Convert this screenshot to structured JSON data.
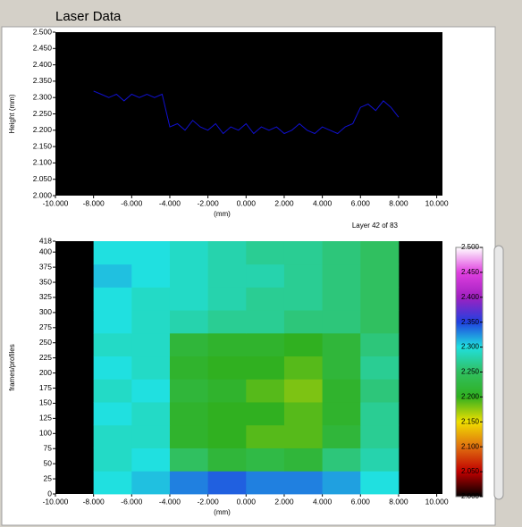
{
  "chart_data": [
    {
      "type": "line",
      "title": "Laser Data",
      "x_label": "(mm)",
      "y_label": "Height (mm)",
      "annotation": "Layer 42 of 83",
      "x": [
        -8,
        -7.6,
        -7.2,
        -6.8,
        -6.4,
        -6,
        -5.6,
        -5.2,
        -4.8,
        -4.4,
        -4,
        -3.6,
        -3.2,
        -2.8,
        -2.4,
        -2,
        -1.6,
        -1.2,
        -0.8,
        -0.4,
        0,
        0.4,
        0.8,
        1.2,
        1.6,
        2,
        2.4,
        2.8,
        3.2,
        3.6,
        4,
        4.4,
        4.8,
        5.2,
        5.6,
        6,
        6.4,
        6.8,
        7.2,
        7.6,
        8
      ],
      "series": [
        {
          "color": "#1010d0",
          "values": [
            2.32,
            2.31,
            2.3,
            2.31,
            2.29,
            2.31,
            2.3,
            2.31,
            2.3,
            2.31,
            2.21,
            2.22,
            2.2,
            2.23,
            2.21,
            2.2,
            2.22,
            2.19,
            2.21,
            2.2,
            2.22,
            2.19,
            2.21,
            2.2,
            2.21,
            2.19,
            2.2,
            2.22,
            2.2,
            2.19,
            2.21,
            2.2,
            2.19,
            2.21,
            2.22,
            2.27,
            2.28,
            2.26,
            2.29,
            2.27,
            2.24
          ]
        }
      ],
      "xlim": [
        -10,
        10.3
      ],
      "ylim": [
        2.0,
        2.5
      ],
      "xticks": [
        {
          "value": -10,
          "label": "-10.000"
        },
        {
          "value": -8,
          "label": "-8.000"
        },
        {
          "value": -6,
          "label": "-6.000"
        },
        {
          "value": -4,
          "label": "-4.000"
        },
        {
          "value": -2,
          "label": "-2.000"
        },
        {
          "value": 0,
          "label": "0.000"
        },
        {
          "value": 2,
          "label": "2.000"
        },
        {
          "value": 4,
          "label": "4.000"
        },
        {
          "value": 6,
          "label": "6.000"
        },
        {
          "value": 8,
          "label": "8.000"
        },
        {
          "value": 10,
          "label": "10.000"
        }
      ],
      "yticks": [
        {
          "value": 2.0,
          "label": "2.000"
        },
        {
          "value": 2.05,
          "label": "2.050"
        },
        {
          "value": 2.1,
          "label": "2.100"
        },
        {
          "value": 2.15,
          "label": "2.150"
        },
        {
          "value": 2.2,
          "label": "2.200"
        },
        {
          "value": 2.25,
          "label": "2.250"
        },
        {
          "value": 2.3,
          "label": "2.300"
        },
        {
          "value": 2.35,
          "label": "2.350"
        },
        {
          "value": 2.4,
          "label": "2.400"
        },
        {
          "value": 2.45,
          "label": "2.450"
        },
        {
          "value": 2.5,
          "label": "2.500"
        }
      ]
    },
    {
      "type": "heatmap",
      "x_label": "(mm)",
      "y_label": "frames/profiles",
      "x_edges": [
        -8,
        -6,
        -4,
        -2,
        0,
        2,
        4,
        6,
        8
      ],
      "y_edges": [
        0,
        38,
        76,
        114,
        152,
        190,
        228,
        266,
        304,
        342,
        380,
        418
      ],
      "z": [
        [
          2.3,
          2.31,
          2.33,
          2.34,
          2.33,
          2.33,
          2.32,
          2.3
        ],
        [
          2.29,
          2.3,
          2.25,
          2.22,
          2.23,
          2.22,
          2.26,
          2.28
        ],
        [
          2.29,
          2.29,
          2.21,
          2.2,
          2.19,
          2.19,
          2.22,
          2.27
        ],
        [
          2.3,
          2.29,
          2.21,
          2.2,
          2.2,
          2.19,
          2.21,
          2.27
        ],
        [
          2.29,
          2.3,
          2.22,
          2.21,
          2.19,
          2.18,
          2.21,
          2.26
        ],
        [
          2.3,
          2.29,
          2.21,
          2.2,
          2.2,
          2.19,
          2.22,
          2.27
        ],
        [
          2.29,
          2.29,
          2.22,
          2.21,
          2.21,
          2.2,
          2.22,
          2.26
        ],
        [
          2.3,
          2.29,
          2.28,
          2.27,
          2.27,
          2.26,
          2.26,
          2.25
        ],
        [
          2.3,
          2.29,
          2.29,
          2.28,
          2.27,
          2.27,
          2.26,
          2.25
        ],
        [
          2.31,
          2.3,
          2.29,
          2.28,
          2.28,
          2.27,
          2.26,
          2.25
        ],
        [
          2.3,
          2.3,
          2.29,
          2.28,
          2.27,
          2.27,
          2.26,
          2.25
        ]
      ],
      "xlim": [
        -10,
        10.3
      ],
      "ylim": [
        0,
        418
      ],
      "xticks": [
        {
          "value": -10,
          "label": "-10.000"
        },
        {
          "value": -8,
          "label": "-8.000"
        },
        {
          "value": -6,
          "label": "-6.000"
        },
        {
          "value": -4,
          "label": "-4.000"
        },
        {
          "value": -2,
          "label": "-2.000"
        },
        {
          "value": 0,
          "label": "0.000"
        },
        {
          "value": 2,
          "label": "2.000"
        },
        {
          "value": 4,
          "label": "4.000"
        },
        {
          "value": 6,
          "label": "6.000"
        },
        {
          "value": 8,
          "label": "8.000"
        },
        {
          "value": 10,
          "label": "10.000"
        }
      ],
      "yticks": [
        0,
        25,
        50,
        75,
        100,
        125,
        150,
        175,
        200,
        225,
        250,
        275,
        300,
        325,
        350,
        375,
        400,
        418
      ],
      "colorscale": [
        {
          "value": 2.0,
          "label": "2.000",
          "color": "#000000"
        },
        {
          "value": 2.05,
          "label": "2.050",
          "color": "#c00000"
        },
        {
          "value": 2.1,
          "label": "2.100",
          "color": "#e07010"
        },
        {
          "value": 2.15,
          "label": "2.150",
          "color": "#f0e000"
        },
        {
          "value": 2.2,
          "label": "2.200",
          "color": "#30b020"
        },
        {
          "value": 2.25,
          "label": "2.250",
          "color": "#30c060"
        },
        {
          "value": 2.3,
          "label": "2.300",
          "color": "#20e0e0"
        },
        {
          "value": 2.35,
          "label": "2.350",
          "color": "#2040e0"
        },
        {
          "value": 2.4,
          "label": "2.400",
          "color": "#a020c0"
        },
        {
          "value": 2.45,
          "label": "2.450",
          "color": "#e040e0"
        },
        {
          "value": 2.5,
          "label": "2.500",
          "color": "#ffffff"
        }
      ]
    }
  ]
}
